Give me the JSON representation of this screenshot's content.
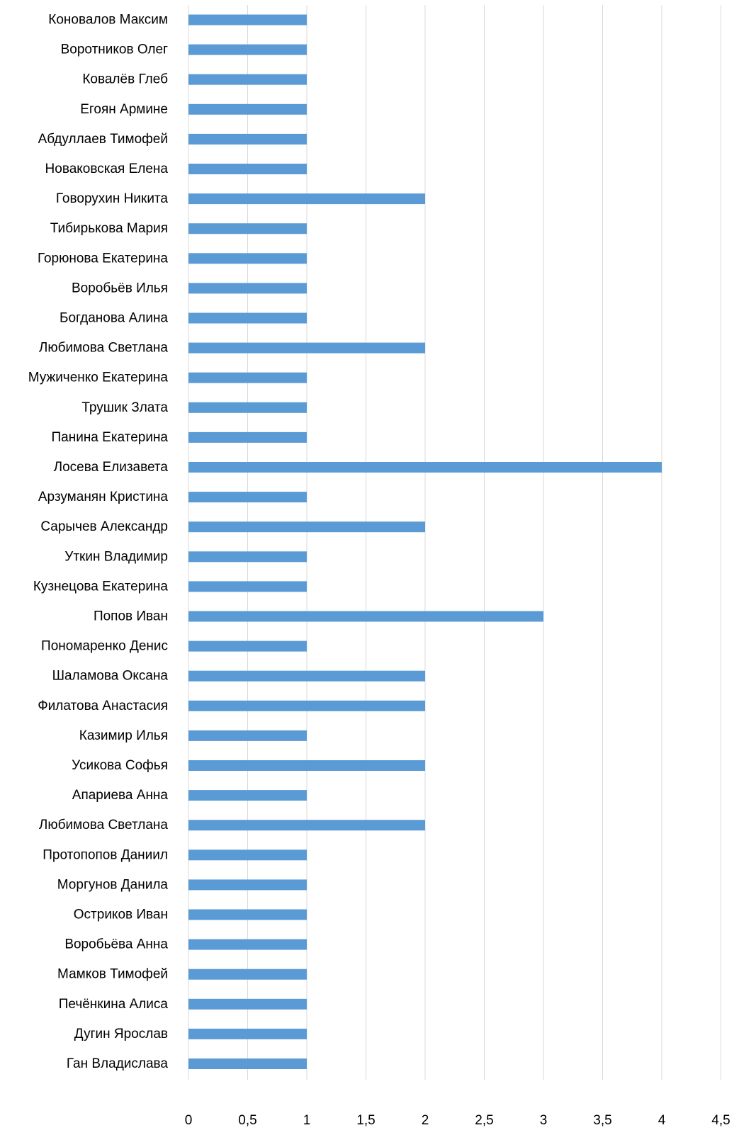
{
  "chart_data": {
    "type": "bar",
    "orientation": "horizontal",
    "title": "",
    "xlabel": "",
    "ylabel": "",
    "xlim": [
      0,
      4.5
    ],
    "x_ticks": [
      "0",
      "0,5",
      "1",
      "1,5",
      "2",
      "2,5",
      "3",
      "3,5",
      "4",
      "4,5"
    ],
    "x_tick_values": [
      0,
      0.5,
      1,
      1.5,
      2,
      2.5,
      3,
      3.5,
      4,
      4.5
    ],
    "grid": "vertical",
    "legend": "none",
    "bar_color": "#5b9bd5",
    "grid_color": "#d9d9d9",
    "categories": [
      "Коновалов Максим",
      "Воротников Олег",
      "Ковалёв Глеб",
      "Егоян Армине",
      "Абдуллаев Тимофей",
      "Новаковская Елена",
      "Говорухин Никита",
      "Тибирькова Мария",
      "Горюнова Екатерина",
      "Воробьёв Илья",
      "Богданова Алина",
      "Любимова Светлана",
      "Мужиченко Екатерина",
      "Трушик Злата",
      "Панина Екатерина",
      "Лосева Елизавета",
      "Арзуманян Кристина",
      "Сарычев Александр",
      "Уткин Владимир",
      "Кузнецова Екатерина",
      "Попов Иван",
      "Пономаренко Денис",
      "Шаламова Оксана",
      "Филатова Анастасия",
      "Казимир Илья",
      "Усикова Софья",
      "Апариева Анна",
      "Любимова Светлана",
      "Протопопов Даниил",
      "Моргунов Данила",
      "Остриков Иван",
      "Воробьёва Анна",
      "Мамков Тимофей",
      "Печёнкина Алиса",
      "Дугин Ярослав",
      "Ган Владислава"
    ],
    "values": [
      1,
      1,
      1,
      1,
      1,
      1,
      2,
      1,
      1,
      1,
      1,
      2,
      1,
      1,
      1,
      4,
      1,
      2,
      1,
      1,
      3,
      1,
      2,
      2,
      1,
      2,
      1,
      2,
      1,
      1,
      1,
      1,
      1,
      1,
      1,
      1
    ]
  }
}
